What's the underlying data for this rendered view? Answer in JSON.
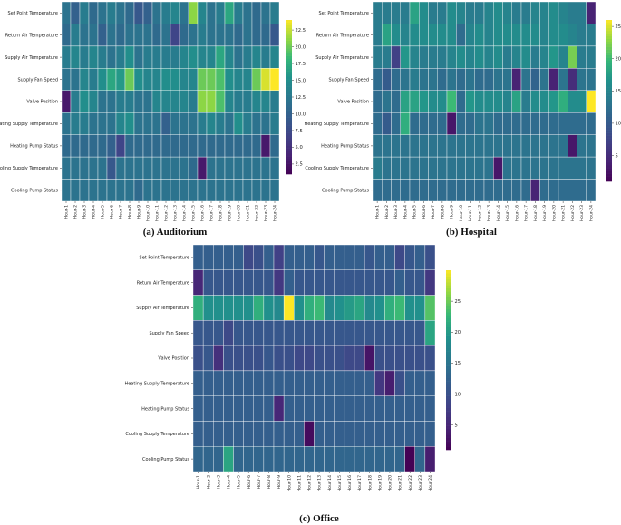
{
  "chart_data": [
    {
      "type": "heatmap",
      "caption": "(a) Auditorium",
      "rows": [
        "Set Point Temperature",
        "Return Air Temperature",
        "Supply Air Temperature",
        "Supply Fan Speed",
        "Valve Position",
        "Heating Supply Temperature",
        "Heating Pump Status",
        "Cooling Supply Temperature",
        "Cooling Pump Status"
      ],
      "columns": [
        "Hour-1",
        "Hour-2",
        "Hour-3",
        "Hour-4",
        "Hour-5",
        "Hour-6",
        "Hour-7",
        "Hour-8",
        "Hour-9",
        "Hour-10",
        "Hour-11",
        "Hour-12",
        "Hour-13",
        "Hour-14",
        "Hour-15",
        "Hour-16",
        "Hour-17",
        "Hour-18",
        "Hour-19",
        "Hour-20",
        "Hour-21",
        "Hour-22",
        "Hour-23",
        "Hour-24"
      ],
      "vmin": 1,
      "vmax": 24,
      "colorbar_ticks": [
        2.5,
        5.0,
        7.5,
        10.0,
        12.5,
        15.0,
        17.5,
        20.0,
        22.5
      ],
      "values": [
        [
          12,
          10,
          13,
          11,
          12,
          13,
          12,
          11,
          9,
          10,
          12,
          13,
          14,
          12,
          21,
          14,
          12,
          13,
          17,
          13,
          12,
          11,
          12,
          13
        ],
        [
          11,
          13,
          12,
          12,
          10,
          12,
          11,
          12,
          12,
          12,
          11,
          12,
          7,
          11,
          12,
          13,
          12,
          12,
          12,
          11,
          12,
          11,
          11,
          9
        ],
        [
          13,
          14,
          13,
          14,
          13,
          12,
          13,
          15,
          12,
          13,
          13,
          13,
          13,
          14,
          15,
          14,
          14,
          17,
          14,
          12,
          13,
          14,
          13,
          14
        ],
        [
          12,
          12,
          14,
          13,
          15,
          17,
          16,
          20,
          15,
          14,
          14,
          15,
          15,
          14,
          14,
          20,
          20,
          19,
          15,
          14,
          14,
          20,
          23,
          24
        ],
        [
          3,
          13,
          15,
          14,
          12,
          12,
          13,
          13,
          12,
          12,
          14,
          14,
          14,
          14,
          13,
          21,
          21,
          19,
          14,
          13,
          13,
          14,
          14,
          13
        ],
        [
          12,
          13,
          13,
          12,
          12,
          12,
          14,
          15,
          12,
          12,
          12,
          10,
          12,
          12,
          12,
          13,
          14,
          13,
          12,
          15,
          13,
          12,
          12,
          13
        ],
        [
          11,
          11,
          11,
          11,
          11,
          10,
          7,
          11,
          11,
          11,
          11,
          11,
          11,
          11,
          11,
          11,
          11,
          11,
          11,
          11,
          11,
          11,
          3,
          11
        ],
        [
          12,
          12,
          12,
          12,
          12,
          9,
          12,
          12,
          12,
          12,
          12,
          12,
          12,
          12,
          11,
          3,
          12,
          12,
          12,
          12,
          12,
          12,
          12,
          12
        ],
        [
          12,
          12,
          12,
          12,
          12,
          12,
          12,
          12,
          11,
          12,
          12,
          12,
          12,
          12,
          12,
          12,
          12,
          12,
          12,
          12,
          12,
          12,
          12,
          12
        ]
      ]
    },
    {
      "type": "heatmap",
      "caption": "(b) Hospital",
      "rows": [
        "Set Point Temperature",
        "Return Air Temperature",
        "Supply Air Temperature",
        "Supply Fan Speed",
        "Valve Position",
        "Heating Supply Temperature",
        "Heating Pump Status",
        "Cooling Supply Temperature",
        "Cooling Pump Status"
      ],
      "columns": [
        "Hour-1",
        "Hour-2",
        "Hour-3",
        "Hour-4",
        "Hour-5",
        "Hour-6",
        "Hour-7",
        "Hour-8",
        "Hour-9",
        "Hour-10",
        "Hour-11",
        "Hour-12",
        "Hour-13",
        "Hour-14",
        "Hour-15",
        "Hour-16",
        "Hour-17",
        "Hour-18",
        "Hour-19",
        "Hour-20",
        "Hour-21",
        "Hour-22",
        "Hour-23",
        "Hour-24"
      ],
      "vmin": 1,
      "vmax": 26,
      "colorbar_ticks": [
        5,
        10,
        15,
        20,
        25
      ],
      "values": [
        [
          14,
          14,
          14,
          14,
          18,
          16,
          14,
          14,
          16,
          15,
          14,
          14,
          15,
          16,
          15,
          14,
          14,
          15,
          15,
          16,
          15,
          14,
          14,
          4
        ],
        [
          14,
          18,
          16,
          15,
          16,
          16,
          16,
          16,
          16,
          12,
          15,
          16,
          15,
          16,
          16,
          16,
          16,
          16,
          15,
          16,
          16,
          15,
          14,
          14
        ],
        [
          14,
          14,
          7,
          17,
          15,
          14,
          14,
          14,
          15,
          16,
          15,
          16,
          15,
          16,
          14,
          15,
          16,
          14,
          15,
          17,
          15,
          22,
          14,
          14
        ],
        [
          12,
          10,
          12,
          13,
          14,
          13,
          13,
          12,
          13,
          12,
          13,
          12,
          12,
          13,
          13,
          4,
          13,
          11,
          13,
          4,
          13,
          5,
          13,
          13
        ],
        [
          12,
          13,
          12,
          18,
          18,
          17,
          16,
          16,
          20,
          12,
          17,
          16,
          16,
          16,
          15,
          18,
          14,
          16,
          16,
          17,
          19,
          16,
          16,
          26
        ],
        [
          12,
          10,
          12,
          19,
          12,
          12,
          12,
          12,
          3,
          12,
          12,
          13,
          13,
          12,
          12,
          12,
          12,
          12,
          12,
          12,
          12,
          12,
          12,
          12
        ],
        [
          13,
          13,
          13,
          13,
          13,
          13,
          13,
          13,
          13,
          13,
          13,
          13,
          13,
          13,
          13,
          13,
          13,
          13,
          13,
          13,
          13,
          3,
          13,
          13
        ],
        [
          14,
          13,
          13,
          13,
          13,
          13,
          13,
          13,
          13,
          13,
          13,
          13,
          13,
          3,
          13,
          13,
          13,
          13,
          13,
          13,
          13,
          13,
          13,
          13
        ],
        [
          12,
          12,
          12,
          12,
          12,
          12,
          12,
          12,
          12,
          12,
          12,
          12,
          12,
          12,
          12,
          12,
          12,
          4,
          12,
          12,
          12,
          12,
          12,
          12
        ]
      ]
    },
    {
      "type": "heatmap",
      "caption": "(c) Office",
      "rows": [
        "Set Point Temperature",
        "Return Air Temperature",
        "Supply Air Temperature",
        "Supply Fan Speed",
        "Valve Position",
        "Heating Supply Temperature",
        "Heating Pump Status",
        "Cooling Supply Temperature",
        "Cooling Pump Status"
      ],
      "columns": [
        "Hour-1",
        "Hour-2",
        "Hour-3",
        "Hour-4",
        "Hour-5",
        "Hour-6",
        "Hour-7",
        "Hour-8",
        "Hour-9",
        "Hour-10",
        "Hour-11",
        "Hour-12",
        "Hour-13",
        "Hour-14",
        "Hour-15",
        "Hour-16",
        "Hour-17",
        "Hour-18",
        "Hour-19",
        "Hour-20",
        "Hour-21",
        "Hour-22",
        "Hour-23",
        "Hour-24"
      ],
      "vmin": 1,
      "vmax": 30,
      "colorbar_ticks": [
        5,
        10,
        15,
        20,
        25
      ],
      "values": [
        [
          12,
          12,
          12,
          12,
          12,
          9,
          10,
          12,
          8,
          12,
          12,
          12,
          11,
          12,
          12,
          12,
          12,
          11,
          12,
          12,
          9,
          11,
          12,
          10
        ],
        [
          5,
          11,
          11,
          11,
          11,
          11,
          11,
          11,
          7,
          12,
          11,
          11,
          11,
          11,
          11,
          11,
          11,
          11,
          11,
          11,
          12,
          11,
          11,
          7
        ],
        [
          22,
          19,
          19,
          19,
          19,
          19,
          22,
          19,
          18,
          30,
          19,
          22,
          23,
          18,
          19,
          20,
          21,
          18,
          19,
          22,
          23,
          19,
          19,
          24
        ],
        [
          11,
          11,
          11,
          9,
          11,
          11,
          11,
          11,
          11,
          11,
          11,
          11,
          11,
          11,
          11,
          11,
          11,
          11,
          11,
          11,
          11,
          11,
          11,
          21
        ],
        [
          10,
          11,
          6,
          10,
          10,
          10,
          10,
          11,
          10,
          10,
          9,
          9,
          10,
          10,
          10,
          9,
          9,
          3,
          10,
          10,
          10,
          10,
          10,
          10
        ],
        [
          12,
          12,
          12,
          12,
          12,
          12,
          12,
          12,
          12,
          12,
          12,
          12,
          12,
          12,
          12,
          12,
          12,
          12,
          7,
          4,
          10,
          12,
          12,
          12
        ],
        [
          12,
          12,
          12,
          12,
          12,
          12,
          12,
          12,
          5,
          12,
          12,
          12,
          12,
          12,
          12,
          12,
          12,
          12,
          12,
          12,
          12,
          12,
          12,
          12
        ],
        [
          12,
          12,
          12,
          12,
          12,
          12,
          12,
          12,
          12,
          12,
          12,
          2,
          12,
          12,
          12,
          12,
          12,
          12,
          12,
          12,
          12,
          12,
          12,
          12
        ],
        [
          13,
          13,
          13,
          21,
          13,
          13,
          13,
          13,
          13,
          13,
          13,
          13,
          13,
          13,
          13,
          13,
          13,
          13,
          13,
          13,
          13,
          1,
          13,
          4
        ]
      ]
    }
  ]
}
